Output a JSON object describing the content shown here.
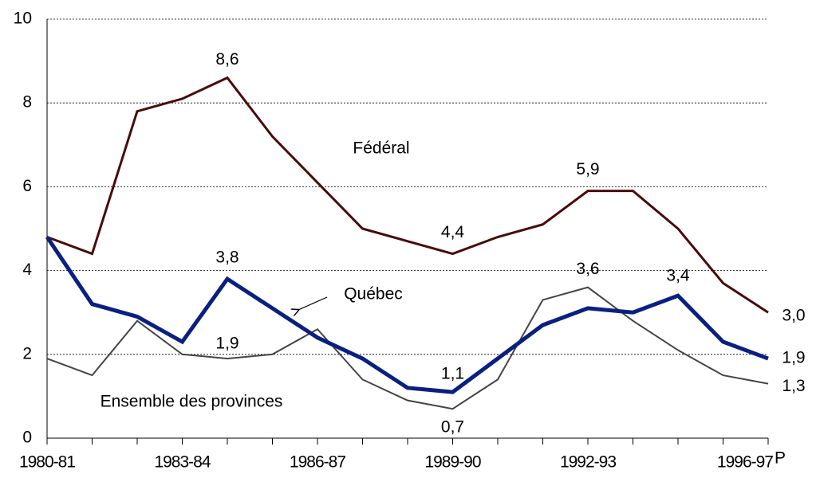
{
  "chart_data": {
    "type": "line",
    "categories": [
      "1980-81",
      null,
      null,
      "1983-84",
      null,
      null,
      "1986-87",
      null,
      null,
      "1989-90",
      null,
      null,
      "1992-93",
      null,
      null,
      null,
      "1996-97"
    ],
    "last_category_superscript": "P",
    "ylim": [
      0,
      10
    ],
    "yticks": [
      0,
      2,
      4,
      6,
      8,
      10
    ],
    "grid": true,
    "series": [
      {
        "name": "Fédéral",
        "color": "#4a0a0a",
        "label_color": "#1a1a4a",
        "values": [
          4.8,
          4.4,
          7.8,
          8.1,
          8.6,
          7.2,
          6.1,
          5.0,
          4.7,
          4.4,
          4.8,
          5.1,
          5.9,
          5.9,
          5.0,
          3.7,
          3.0
        ],
        "value_labels": [
          null,
          null,
          null,
          null,
          "8,6",
          null,
          null,
          null,
          null,
          "4,4",
          null,
          null,
          "5,9",
          null,
          null,
          null,
          "3,0"
        ]
      },
      {
        "name": "Québec",
        "color": "#0a2080",
        "label_color": "#0a2080",
        "values": [
          4.8,
          3.2,
          2.9,
          2.3,
          3.8,
          3.1,
          2.4,
          1.9,
          1.2,
          1.1,
          1.9,
          2.7,
          3.1,
          3.0,
          3.4,
          2.3,
          1.9
        ],
        "value_labels": [
          null,
          null,
          null,
          null,
          "3,8",
          null,
          null,
          null,
          null,
          "1,1",
          null,
          null,
          null,
          null,
          "3,4",
          null,
          "1,9"
        ]
      },
      {
        "name": "Ensemble des provinces",
        "color": "#444444",
        "label_color": "#0a2080",
        "values": [
          1.9,
          1.5,
          2.8,
          2.0,
          1.9,
          2.0,
          2.6,
          1.4,
          0.9,
          0.7,
          1.4,
          3.3,
          3.6,
          2.8,
          2.1,
          1.5,
          1.3
        ],
        "value_labels": [
          null,
          null,
          null,
          null,
          "1,9",
          null,
          null,
          null,
          null,
          "0,7",
          null,
          null,
          "3,6",
          null,
          null,
          null,
          "1,3"
        ]
      }
    ]
  }
}
